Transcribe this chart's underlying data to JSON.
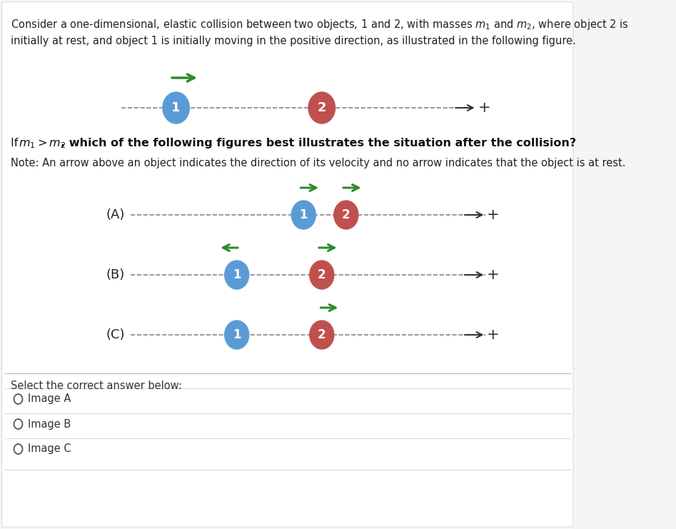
{
  "bg_color": "#f0f0f0",
  "panel_bg": "#ffffff",
  "title_text": "Consider a one-dimensional, elastic collision between two objects, 1 and 2, with masses μ₁ and μ₂, where object 2 is\ninitially at rest, and object 1 is initially moving in the positive direction, as illustrated in the following figure.",
  "question_text": "If m₁ > m₂, which of the following figures best illustrates the situation after the collision?",
  "note_text": "Note: An arrow above an object indicates the direction of its velocity and no arrow indicates that the object is at rest.",
  "select_text": "Select the correct answer below:",
  "options": [
    "Image A",
    "Image B",
    "Image C"
  ],
  "obj1_color": "#5b9bd5",
  "obj2_color": "#c0504d",
  "green_arrow": "#2d8a2d",
  "dark_arrow": "#333333",
  "plus_color": "#333333"
}
